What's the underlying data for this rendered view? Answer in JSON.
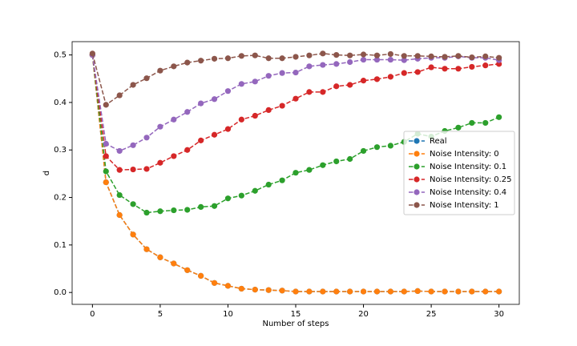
{
  "chart_data": {
    "type": "line",
    "xlabel": "Number of steps",
    "ylabel": "d",
    "x": [
      0,
      1,
      2,
      3,
      4,
      5,
      6,
      7,
      8,
      9,
      10,
      11,
      12,
      13,
      14,
      15,
      16,
      17,
      18,
      19,
      20,
      21,
      22,
      23,
      24,
      25,
      26,
      27,
      28,
      29,
      30
    ],
    "xlim": [
      -1.5,
      31.5
    ],
    "xticks": [
      0,
      5,
      10,
      15,
      20,
      25,
      30
    ],
    "ylim": [
      -0.025,
      0.528
    ],
    "yticks": [
      {
        "value": 0,
        "label": "0.0"
      },
      0.1,
      0.2,
      0.3,
      0.4,
      0.5
    ],
    "legend": "center right",
    "series": [
      {
        "name": "Real",
        "color": "#1f77b4",
        "values": [
          0.5,
          0.232,
          0.163,
          0.122,
          0.091,
          0.074,
          0.061,
          0.047,
          0.035,
          0.02,
          0.014,
          0.008,
          0.006,
          0.005,
          0.004,
          0.002,
          0.002,
          0.002,
          0.002,
          0.002,
          0.002,
          0.002,
          0.002,
          0.002,
          0.003,
          0.002,
          0.002,
          0.002,
          0.002,
          0.002,
          0.002
        ]
      },
      {
        "name": "Noise Intensity: 0",
        "color": "#ff7f0e",
        "values": [
          0.5,
          0.232,
          0.163,
          0.122,
          0.091,
          0.074,
          0.061,
          0.047,
          0.035,
          0.02,
          0.014,
          0.008,
          0.006,
          0.005,
          0.004,
          0.002,
          0.002,
          0.002,
          0.002,
          0.002,
          0.002,
          0.002,
          0.002,
          0.002,
          0.003,
          0.002,
          0.002,
          0.002,
          0.002,
          0.002,
          0.002
        ]
      },
      {
        "name": "Noise Intensity: 0.1",
        "color": "#2ca02c",
        "values": [
          0.5,
          0.255,
          0.205,
          0.186,
          0.168,
          0.171,
          0.173,
          0.174,
          0.18,
          0.182,
          0.198,
          0.204,
          0.214,
          0.227,
          0.236,
          0.252,
          0.258,
          0.268,
          0.276,
          0.281,
          0.298,
          0.306,
          0.309,
          0.317,
          0.334,
          0.328,
          0.34,
          0.347,
          0.357,
          0.357,
          0.369
        ]
      },
      {
        "name": "Noise Intensity: 0.25",
        "color": "#d62728",
        "values": [
          0.5,
          0.287,
          0.258,
          0.259,
          0.26,
          0.273,
          0.287,
          0.3,
          0.32,
          0.332,
          0.344,
          0.364,
          0.372,
          0.384,
          0.393,
          0.408,
          0.422,
          0.422,
          0.434,
          0.437,
          0.446,
          0.449,
          0.454,
          0.462,
          0.464,
          0.474,
          0.471,
          0.471,
          0.475,
          0.478,
          0.481
        ]
      },
      {
        "name": "Noise Intensity: 0.4",
        "color": "#9467bd",
        "values": [
          0.5,
          0.313,
          0.298,
          0.31,
          0.326,
          0.349,
          0.364,
          0.38,
          0.398,
          0.407,
          0.424,
          0.439,
          0.444,
          0.456,
          0.462,
          0.463,
          0.476,
          0.479,
          0.481,
          0.485,
          0.49,
          0.49,
          0.49,
          0.489,
          0.492,
          0.494,
          0.494,
          0.497,
          0.494,
          0.494,
          0.489
        ]
      },
      {
        "name": "Noise Intensity: 1",
        "color": "#8c564b",
        "values": [
          0.503,
          0.395,
          0.415,
          0.437,
          0.451,
          0.467,
          0.476,
          0.484,
          0.488,
          0.492,
          0.493,
          0.498,
          0.499,
          0.493,
          0.493,
          0.496,
          0.499,
          0.503,
          0.5,
          0.499,
          0.501,
          0.499,
          0.502,
          0.498,
          0.498,
          0.497,
          0.496,
          0.498,
          0.495,
          0.497,
          0.494
        ]
      }
    ]
  }
}
